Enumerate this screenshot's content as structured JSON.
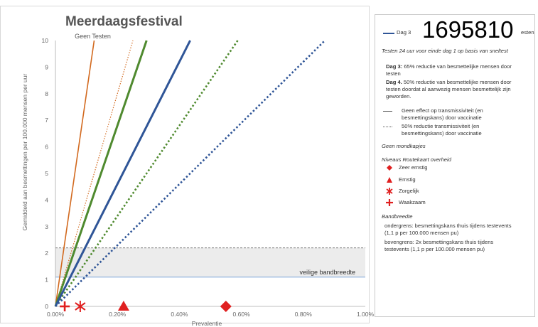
{
  "chart_data": {
    "type": "line",
    "title": "Meerdaagsfestival",
    "xlabel": "Prevalentie",
    "ylabel": "Gemiddeld aan besmettingen per 100.000 mensen per uur",
    "xlim": [
      0,
      1.0
    ],
    "ylim": [
      0,
      10
    ],
    "x_ticks": [
      "0.00%",
      "0.20%",
      "0.40%",
      "0.60%",
      "0.80%",
      "1.00%"
    ],
    "y_ticks": [
      "0",
      "1",
      "2",
      "3",
      "4",
      "5",
      "6",
      "7",
      "8",
      "9",
      "10"
    ],
    "grid": false,
    "series": [
      {
        "label": "Geen Testen",
        "color": "#d2691e",
        "style": "solid",
        "slope": 80
      },
      {
        "color": "#d2691e",
        "style": "dotted",
        "slope": 40
      },
      {
        "color": "#4f8a2f",
        "style": "solid",
        "slope": 34
      },
      {
        "color": "#4f8a2f",
        "style": "dotted",
        "slope": 17
      },
      {
        "color": "#2f5597",
        "style": "solid",
        "slope": 23
      },
      {
        "color": "#2f5597",
        "style": "dotted",
        "slope": 11.5
      }
    ],
    "band": {
      "lower": 1.1,
      "upper": 2.2,
      "label": "veilige bandbreedte"
    },
    "markers": [
      {
        "level": "Waakzaam",
        "x": 0.03,
        "y": 0,
        "color": "#e02020"
      },
      {
        "level": "Zorgelijk",
        "x": 0.08,
        "y": 0,
        "color": "#e02020"
      },
      {
        "level": "Ernstig",
        "x": 0.22,
        "y": 0,
        "color": "#e02020"
      },
      {
        "level": "Zeer ernstig",
        "x": 0.55,
        "y": 0,
        "color": "#e02020"
      }
    ]
  },
  "legend": {
    "overlay_number": "1695810",
    "head_dag3": "Dag 3",
    "head_testen": "esten",
    "testen_header": "Testen 24 uur voor einde dag 1 op basis van sneltest",
    "dag3_label": "Dag 3:",
    "dag3_text": " 65% reductie van besmettelijke mensen  door\ntesten",
    "dag4_label": "Dag 4.",
    "dag4_text": " 50% reductie van besmettelijke mensen door\ntesten doordat al aanwezig mensen besmettelijk zijn\ngeworden.",
    "line_solid": "Geen effect op transmissiviteit (en\nbesmettingskans) door vaccinatie",
    "line_dotted": "50% reductie transmissiviteit  (en\nbesmettingskans) door vaccinatie",
    "mondkapjes": "Geen mondkapjes",
    "niveaus_header": "Niveaus Routekaart overheid",
    "niveau_1": "Zeer ernstig",
    "niveau_2": "Ernstig",
    "niveau_3": "Zorgelijk",
    "niveau_4": "Waakzaam",
    "bandbreedte_header": "Bandbreedte",
    "ondergrens": "ondergrens: besmettingskans thuis tijdens testevents\n(1,1 p per 100.000 mensen pu)",
    "bovengrens": "bovengrens: 2x besmettingskans thuis tijdens\ntestevents (1,1 p per 100.000 mensen pu)"
  },
  "colors": {
    "marker": "#e02020",
    "orange": "#d2691e",
    "green": "#4f8a2f",
    "blue": "#2f5597",
    "band": "#ececec"
  }
}
